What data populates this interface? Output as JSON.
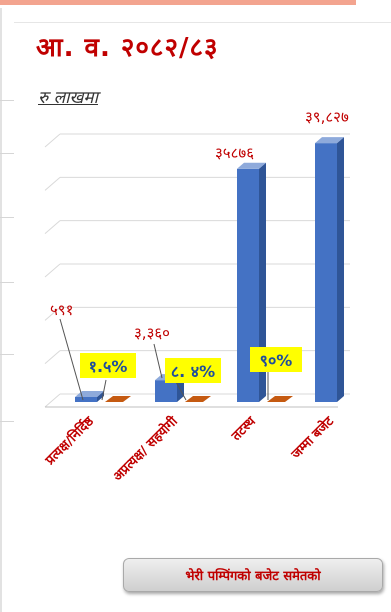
{
  "header": {
    "title": "आ. व. २०८२/८३",
    "subtitle": "रु लाखमा"
  },
  "chart_data": {
    "type": "bar",
    "title": "आ. व. २०८२/८३",
    "ylabel": "रु लाखमा",
    "categories": [
      "प्रत्यक्ष/निर्दिष्ठ",
      "अप्रत्यक्ष/ सहयोगी",
      "तटस्थ",
      "जम्मा बजेट"
    ],
    "series": [
      {
        "values": [
          591,
          3360,
          35876,
          39827
        ]
      },
      {
        "values": [
          0,
          0,
          0,
          0
        ]
      }
    ],
    "value_labels": [
      "५९१",
      "३,३६०",
      "३५८७६",
      "३९,८२७"
    ],
    "percent_labels": [
      "१.५%",
      "८. ४%",
      "९०%"
    ],
    "ylim": [
      0,
      40000
    ],
    "grid": true,
    "colors": {
      "bar": "#4472c4",
      "bar_dark": "#2f5597",
      "bar_top": "#8eaadb",
      "secondary": "#c55a11",
      "highlight": "#ffff00",
      "label": "#c00000",
      "percent_text": "#1f4e9c"
    }
  },
  "note": "भेरी पम्पिंगको बजेट समेतको"
}
